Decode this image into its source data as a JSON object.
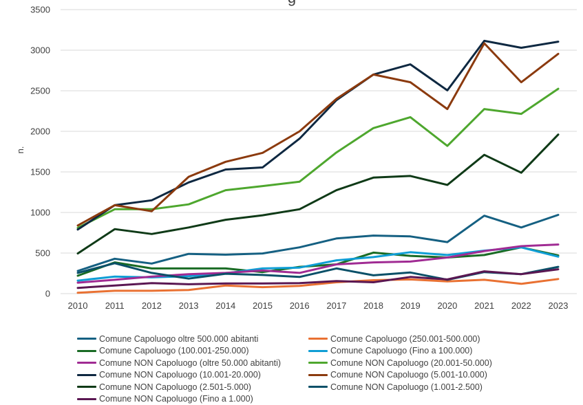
{
  "chart_data": {
    "type": "line",
    "title": "g",
    "xlabel": "",
    "ylabel": "n.",
    "ylim": [
      0,
      3500
    ],
    "yticks": [
      0,
      500,
      1000,
      1500,
      2000,
      2500,
      3000,
      3500
    ],
    "grid": true,
    "legend_position": "bottom",
    "categories": [
      "2010",
      "2011",
      "2012",
      "2013",
      "2014",
      "2015",
      "2016",
      "2017",
      "2018",
      "2019",
      "2020",
      "2021",
      "2022",
      "2023"
    ],
    "series": [
      {
        "name": "Comune Capoluogo oltre 500.000 abitanti",
        "color": "#156082",
        "values": [
          280,
          430,
          370,
          490,
          480,
          495,
          570,
          680,
          715,
          705,
          635,
          960,
          815,
          970
        ]
      },
      {
        "name": "Comune Capoluogo (250.001-500.000)",
        "color": "#E97132",
        "values": [
          10,
          35,
          35,
          45,
          100,
          80,
          95,
          140,
          165,
          175,
          150,
          170,
          120,
          180
        ]
      },
      {
        "name": "Comune Capoluogo (100.001-250.000)",
        "color": "#196B24",
        "values": [
          220,
          385,
          310,
          310,
          310,
          265,
          330,
          360,
          505,
          465,
          445,
          475,
          570,
          470
        ]
      },
      {
        "name": "Comune Capoluogo (Fino a 100.000)",
        "color": "#0F9ED5",
        "values": [
          160,
          210,
          200,
          215,
          250,
          310,
          320,
          410,
          450,
          510,
          475,
          530,
          570,
          455
        ]
      },
      {
        "name": "Comune NON Capoluogo (oltre 50.000 abitanti)",
        "color": "#A02B93",
        "values": [
          135,
          170,
          210,
          240,
          255,
          285,
          255,
          360,
          385,
          395,
          445,
          525,
          585,
          605
        ]
      },
      {
        "name": "Comune NON Capoluogo (20.001-50.000)",
        "color": "#4EA72E",
        "values": [
          810,
          1040,
          1040,
          1100,
          1275,
          1325,
          1380,
          1740,
          2040,
          2175,
          1820,
          2275,
          2215,
          2525
        ]
      },
      {
        "name": "Comune NON Capoluogo (10.001-20.000)",
        "color": "#0E2841",
        "values": [
          790,
          1090,
          1150,
          1370,
          1530,
          1555,
          1910,
          2385,
          2700,
          2825,
          2505,
          3115,
          3030,
          3105
        ]
      },
      {
        "name": "Comune NON Capoluogo (5.001-10.000)",
        "color": "#8B3A0E",
        "values": [
          840,
          1090,
          1015,
          1440,
          1625,
          1735,
          2000,
          2400,
          2700,
          2605,
          2275,
          3085,
          2605,
          2955
        ]
      },
      {
        "name": "Comune NON Capoluogo (2.501-5.000)",
        "color": "#0F3A17",
        "values": [
          495,
          795,
          735,
          815,
          910,
          965,
          1040,
          1275,
          1430,
          1450,
          1340,
          1710,
          1490,
          1960
        ]
      },
      {
        "name": "Comune NON Capoluogo (1.001-2.500)",
        "color": "#0A5068",
        "values": [
          255,
          375,
          255,
          185,
          245,
          230,
          205,
          310,
          225,
          260,
          170,
          265,
          240,
          330
        ]
      },
      {
        "name": "Comune NON Capoluogo (Fino a 1.000)",
        "color": "#5A1752",
        "values": [
          70,
          100,
          130,
          115,
          125,
          125,
          130,
          155,
          140,
          205,
          175,
          275,
          240,
          300
        ]
      }
    ]
  }
}
